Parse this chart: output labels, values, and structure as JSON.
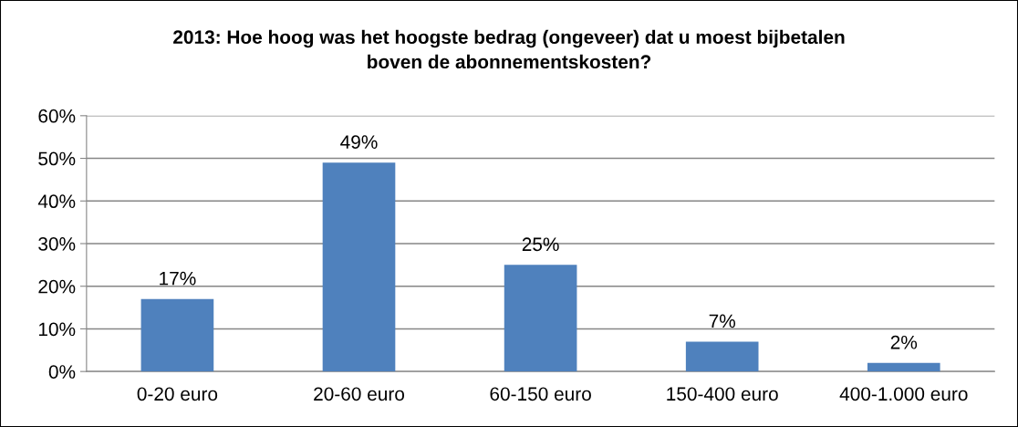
{
  "chart_data": {
    "type": "bar",
    "title": "2013: Hoe hoog was het hoogste bedrag (ongeveer) dat u moest bijbetalen\nboven de abonnementskosten?",
    "categories": [
      "0-20 euro",
      "20-60 euro",
      "60-150 euro",
      "150-400 euro",
      "400-1.000 euro"
    ],
    "values": [
      17,
      49,
      25,
      7,
      2
    ],
    "value_labels": [
      "17%",
      "49%",
      "25%",
      "7%",
      "2%"
    ],
    "color": "#4f81bd",
    "ylim": [
      0,
      60
    ],
    "yticks": [
      {
        "value": 0,
        "label": "0%"
      },
      {
        "value": 10,
        "label": "10%"
      },
      {
        "value": 20,
        "label": "20%"
      },
      {
        "value": 30,
        "label": "30%"
      },
      {
        "value": 40,
        "label": "40%"
      },
      {
        "value": 50,
        "label": "50%"
      },
      {
        "value": 60,
        "label": "60%"
      }
    ],
    "grid": "y",
    "legend": false
  }
}
